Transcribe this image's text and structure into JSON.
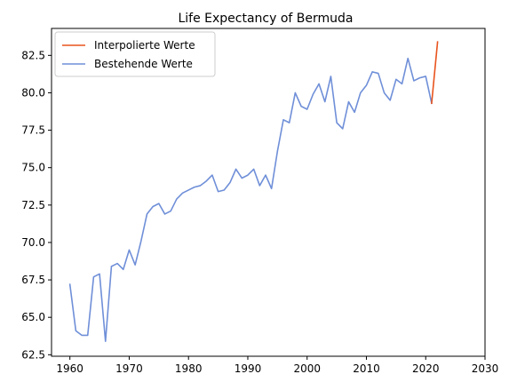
{
  "chart_data": {
    "type": "line",
    "title": "Life Expectancy of Bermuda",
    "xlabel": "",
    "ylabel": "",
    "xlim": [
      1956.9,
      2030
    ],
    "ylim": [
      62.4,
      84.3
    ],
    "xticks": [
      1960,
      1970,
      1980,
      1990,
      2000,
      2010,
      2020,
      2030
    ],
    "yticks": [
      62.5,
      65.0,
      67.5,
      70.0,
      72.5,
      75.0,
      77.5,
      80.0,
      82.5
    ],
    "ytick_labels": [
      "62.5",
      "65.0",
      "67.5",
      "70.0",
      "72.5",
      "75.0",
      "77.5",
      "80.0",
      "82.5"
    ],
    "grid": false,
    "legend_position": "top-left",
    "series": [
      {
        "name": "Interpolierte Werte",
        "color": "#e8541e",
        "x": [
          2021,
          2022
        ],
        "y": [
          79.3,
          83.4
        ]
      },
      {
        "name": "Bestehende Werte",
        "color": "#6f8fd8",
        "x": [
          1960,
          1961,
          1962,
          1963,
          1964,
          1965,
          1966,
          1967,
          1968,
          1969,
          1970,
          1971,
          1972,
          1973,
          1974,
          1975,
          1976,
          1977,
          1978,
          1979,
          1980,
          1981,
          1982,
          1983,
          1984,
          1985,
          1986,
          1987,
          1988,
          1989,
          1990,
          1991,
          1992,
          1993,
          1994,
          1995,
          1996,
          1997,
          1998,
          1999,
          2000,
          2001,
          2002,
          2003,
          2004,
          2005,
          2006,
          2007,
          2008,
          2009,
          2010,
          2011,
          2012,
          2013,
          2014,
          2015,
          2016,
          2017,
          2018,
          2019,
          2020,
          2021
        ],
        "y": [
          67.2,
          64.1,
          63.8,
          63.8,
          67.7,
          67.9,
          63.4,
          68.4,
          68.6,
          68.2,
          69.5,
          68.5,
          70.1,
          71.9,
          72.4,
          72.6,
          71.9,
          72.1,
          72.9,
          73.3,
          73.5,
          73.7,
          73.8,
          74.1,
          74.5,
          73.4,
          73.5,
          74.0,
          74.9,
          74.3,
          74.5,
          74.9,
          73.8,
          74.5,
          73.6,
          76.1,
          78.2,
          78.0,
          80.0,
          79.1,
          78.9,
          79.9,
          80.6,
          79.4,
          81.1,
          78.0,
          77.6,
          79.4,
          78.7,
          80.0,
          80.5,
          81.4,
          81.3,
          80.0,
          79.5,
          80.9,
          80.6,
          82.3,
          80.8,
          81.0,
          81.1,
          79.3
        ]
      }
    ]
  }
}
